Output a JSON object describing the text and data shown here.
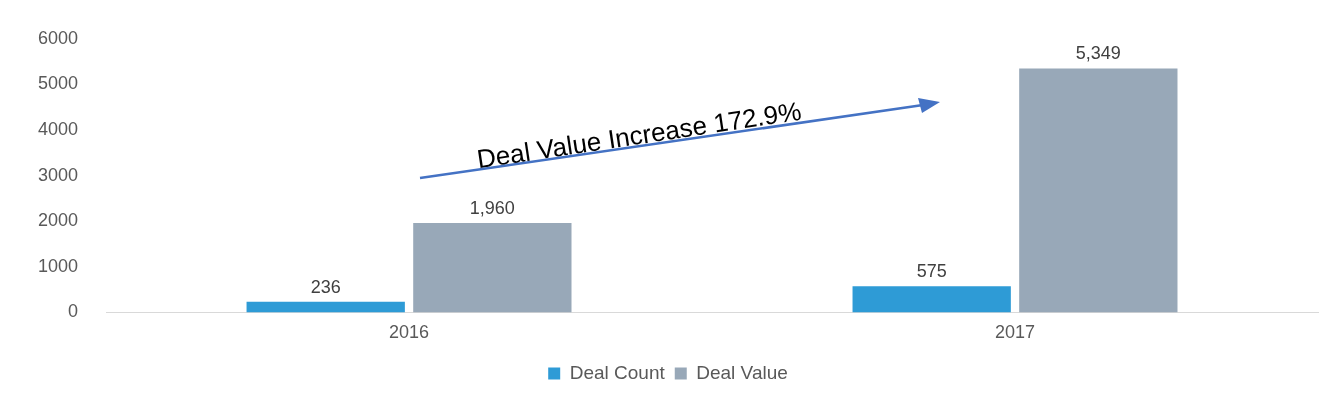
{
  "chart_data": {
    "type": "bar",
    "categories": [
      "2016",
      "2017"
    ],
    "series": [
      {
        "name": "Deal Count",
        "color": "#2e9bd6",
        "values": [
          236,
          575
        ],
        "value_labels": [
          "236",
          "575"
        ]
      },
      {
        "name": "Deal Value",
        "color": "#98a8b8",
        "values": [
          1960,
          5349
        ],
        "value_labels": [
          "1,960",
          "5,349"
        ]
      }
    ],
    "ylim": [
      0,
      6000
    ],
    "yticks": [
      0,
      1000,
      2000,
      3000,
      4000,
      5000,
      6000
    ],
    "grid": false,
    "legend": "bottom",
    "annotations": [
      "Deal Value Increase 172.9%"
    ]
  }
}
